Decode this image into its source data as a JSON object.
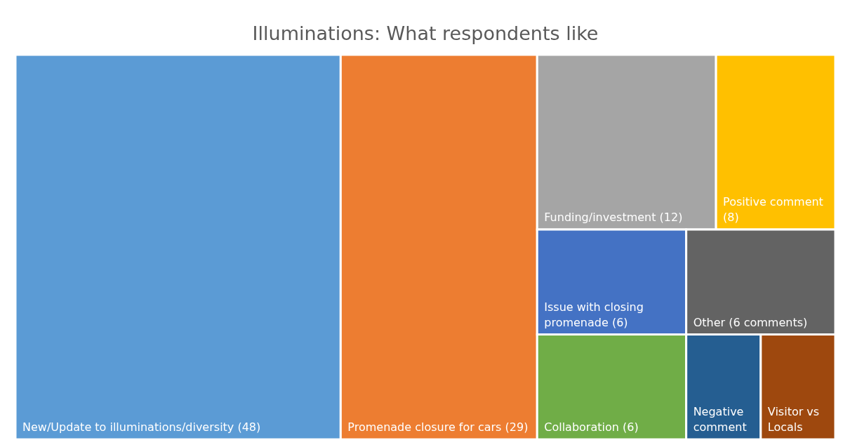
{
  "chart_data": {
    "type": "other",
    "title": "Illuminations: What respondents like",
    "categories": [
      "New/Update to illuminations/diversity",
      "Promenade closure for cars",
      "Funding/investment",
      "Positive comment",
      "Issue with closing promenade",
      "Collaboration",
      "Other",
      "Negative comment",
      "Visitor vs Locals"
    ],
    "values": [
      48,
      29,
      12,
      8,
      6,
      6,
      6,
      null,
      null
    ],
    "value_labels": [
      "(48)",
      "(29)",
      "(12)",
      "(8)",
      "(6)",
      "(6)",
      "(6 comments)",
      null,
      null
    ],
    "colors": [
      "#5b9bd5",
      "#ed7d31",
      "#a5a5a5",
      "#ffc000",
      "#4472c4",
      "#70ad47",
      "#636363",
      "#255e91",
      "#9e480e"
    ]
  }
}
